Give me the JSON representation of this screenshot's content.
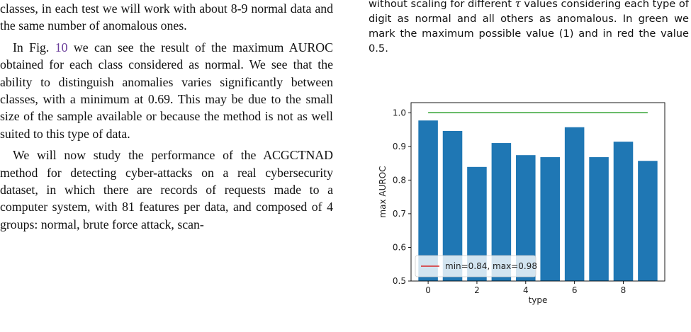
{
  "left_column": {
    "p1": "classes, in each test we will work with about 8-9 normal data and the same number of anomalous ones.",
    "p2_before": "In Fig. ",
    "p2_ref": "10",
    "p2_after": " we can see the result of the maximum AUROC obtained for each class considered as normal. We see that the ability to distinguish anomalies varies significantly between classes, with a minimum at 0.69. This may be due to the small size of the sample available or because the method is not as well suited to this type of data.",
    "p3": "We will now study the performance of the ACGCTNAD method for detecting cyber-attacks on a real cybersecurity dataset, in which there are records of requests made to a computer system, with 81 features per data, and composed of 4 groups: normal, brute force attack, scan-"
  },
  "caption": {
    "before_tau": "without scaling for different ",
    "tau": "τ",
    "after_tau": " values considering each type of digit as normal and all others as anomalous. In green we mark the maximum possible value (1) and in red the value 0.5."
  },
  "chart_data": {
    "type": "bar",
    "x": [
      0,
      1,
      2,
      3,
      4,
      5,
      6,
      7,
      8,
      9
    ],
    "values": [
      0.977,
      0.946,
      0.839,
      0.91,
      0.874,
      0.868,
      0.957,
      0.868,
      0.914,
      0.857
    ],
    "xlabel": "type",
    "ylabel": "max AUROC",
    "xticks": [
      0,
      2,
      4,
      6,
      8
    ],
    "yticks": [
      0.5,
      0.6,
      0.7,
      0.8,
      0.9,
      1.0
    ],
    "ytick_labels": [
      "0.5",
      "0.6",
      "0.7",
      "0.8",
      "0.9",
      "1.0"
    ],
    "ylim": [
      0.5,
      1.03
    ],
    "xlim": [
      -0.7,
      9.7
    ],
    "reference_lines": [
      {
        "name": "max",
        "y": 1.0,
        "color": "#2ca02c",
        "x_range": [
          0,
          9
        ]
      }
    ],
    "legend": {
      "label": "min=0.84, max=0.98",
      "line_color": "#d62728",
      "placement": "lower-left"
    },
    "bar_color": "#1f77b4",
    "grid": false
  }
}
